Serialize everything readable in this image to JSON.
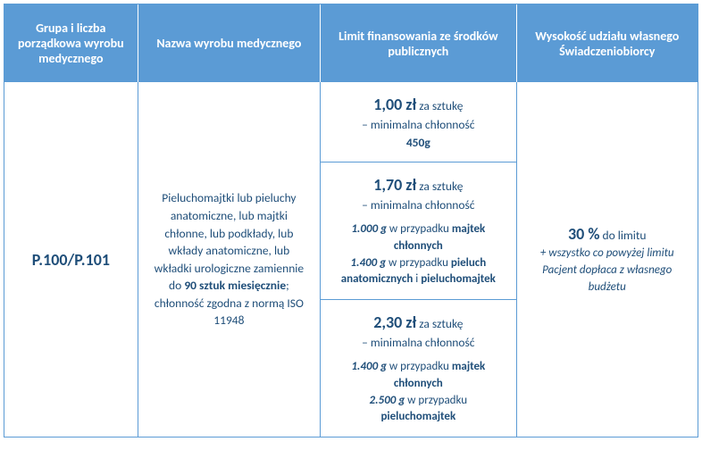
{
  "header": {
    "col1": "Grupa i liczba porządkowa wyrobu medycznego",
    "col2": "Nazwa wyrobu medycznego",
    "col3": "Limit finansowania ze środków publicznych",
    "col4": "Wysokość udziału własnego Świadczeniobiorcy"
  },
  "row": {
    "code": "P.100/P.101",
    "name_part1": "Pieluchomajtki lub pieluchy anatomiczne, lub majtki chłonne, lub podkłady, lub wkłady anatomiczne, lub wkładki urologiczne zamiennie do ",
    "name_bold": "90 sztuk miesięcznie",
    "name_part2": "; chłonność zgodna z normą ISO 11948",
    "limit1": {
      "price": "1,00 zł",
      "per": " za sztukę",
      "sub": "– minimalna chłonność",
      "weight": "450g"
    },
    "limit2": {
      "price": "1,70 zł",
      "per": " za sztukę",
      "sub": "– minimalna chłonność",
      "w1": "1.000 g",
      "t1": " w przypadku ",
      "b1": "majtek chłonnych",
      "w2": "1.400 g",
      "t2": " w przypadku ",
      "b2a": "pieluch anatomicznych",
      "and": " i ",
      "b2b": "pieluchomajtek"
    },
    "limit3": {
      "price": "2,30 zł",
      "per": " za sztukę",
      "sub": "– minimalna chłonność",
      "w1": "1.400 g",
      "t1": " w przypadku ",
      "b1": "majtek chłonnych",
      "w2": "2.500 g",
      "t2": " w przypadku ",
      "b2": "pieluchomajtek"
    },
    "share": {
      "pct": "30 %",
      "pct_after": " do limitu",
      "note": "+ wszystko co powyżej limitu Pacjent dopłaca z własnego budżetu"
    }
  }
}
